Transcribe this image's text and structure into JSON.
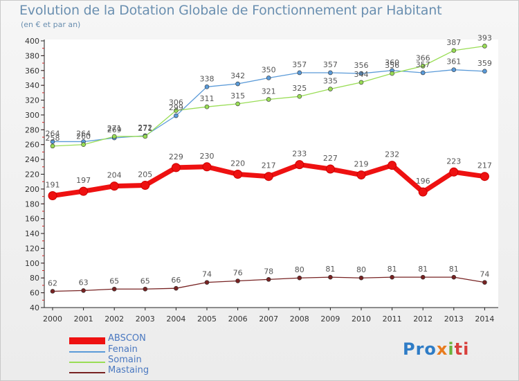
{
  "title": "Evolution de la Dotation Globale de Fonctionnement par Habitant",
  "subtitle": "(en € et par an)",
  "logo": {
    "p1": "Pro",
    "p2": "x",
    "p3": "i",
    "p4": "ti"
  },
  "chart_data": {
    "type": "line",
    "title": "Evolution de la Dotation Globale de Fonctionnement par Habitant",
    "subtitle": "(en € et par an)",
    "xlabel": "",
    "ylabel": "",
    "x": [
      "2000",
      "2001",
      "2002",
      "2003",
      "2004",
      "2005",
      "2006",
      "2007",
      "2008",
      "2009",
      "2010",
      "2011",
      "2012",
      "2013",
      "2014"
    ],
    "yticks": [
      40,
      60,
      80,
      100,
      120,
      140,
      160,
      180,
      200,
      220,
      240,
      260,
      280,
      300,
      320,
      340,
      360,
      380,
      400
    ],
    "ylim": [
      40,
      400
    ],
    "grid": false,
    "legend": "bottom-left",
    "series": [
      {
        "name": "ABSCON",
        "color": "#ee1111",
        "values": [
          191,
          197,
          204,
          205,
          229,
          230,
          220,
          217,
          233,
          227,
          219,
          232,
          196,
          223,
          217
        ]
      },
      {
        "name": "Fenain",
        "color": "#5a9ad8",
        "values": [
          264,
          264,
          269,
          272,
          299,
          338,
          342,
          350,
          357,
          357,
          356,
          360,
          357,
          361,
          359
        ]
      },
      {
        "name": "Somain",
        "color": "#99dd55",
        "values": [
          258,
          260,
          271,
          271,
          306,
          311,
          315,
          321,
          325,
          335,
          344,
          356,
          366,
          387,
          393
        ]
      },
      {
        "name": "Mastaing",
        "color": "#772222",
        "values": [
          62,
          63,
          65,
          65,
          66,
          74,
          76,
          78,
          80,
          81,
          80,
          81,
          81,
          81,
          74
        ]
      }
    ]
  }
}
